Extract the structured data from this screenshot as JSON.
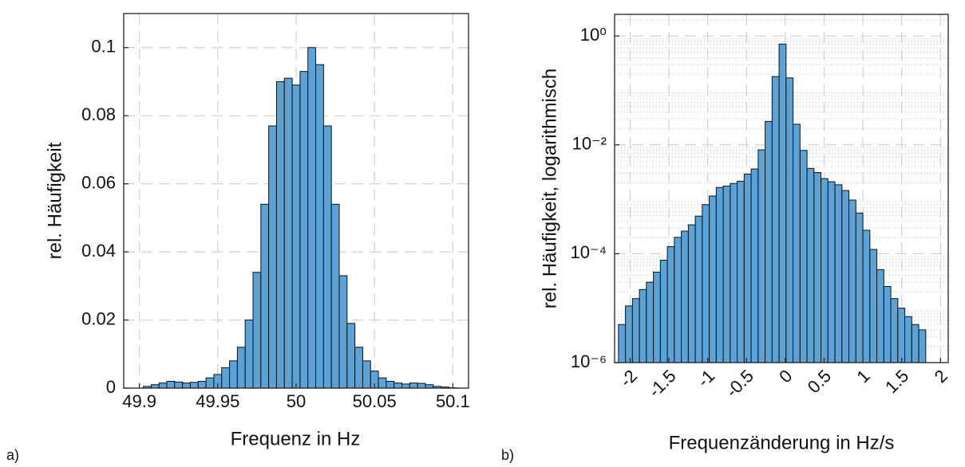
{
  "chart_data": [
    {
      "type": "histogram",
      "panel_label": "a)",
      "xlabel": "Frequenz in Hz",
      "ylabel": "rel. Häufigkeit",
      "bins": [
        49.9025,
        49.9075,
        49.9125,
        49.9175,
        49.9225,
        49.9275,
        49.9325,
        49.9375,
        49.9425,
        49.9475,
        49.9525,
        49.9575,
        49.9625,
        49.9675,
        49.9725,
        49.9775,
        49.9825,
        49.9875,
        49.9925,
        49.9975,
        50.0025,
        50.0075,
        50.0125,
        50.0175,
        50.0225,
        50.0275,
        50.0325,
        50.0375,
        50.0425,
        50.0475,
        50.0525,
        50.0575,
        50.0625,
        50.0675,
        50.0725,
        50.0775,
        50.0825,
        50.0875,
        50.0925,
        50.0975,
        50.1025
      ],
      "values": [
        0.0005,
        0.001,
        0.0015,
        0.002,
        0.0018,
        0.0015,
        0.0017,
        0.002,
        0.003,
        0.004,
        0.006,
        0.008,
        0.012,
        0.02,
        0.034,
        0.054,
        0.077,
        0.09,
        0.091,
        0.089,
        0.093,
        0.1,
        0.095,
        0.077,
        0.054,
        0.033,
        0.019,
        0.012,
        0.008,
        0.005,
        0.003,
        0.002,
        0.0015,
        0.0012,
        0.0015,
        0.0014,
        0.001,
        0.0005,
        0.0003,
        0.0001
      ],
      "color": "#5ba3d6",
      "xlim": [
        49.89,
        50.11
      ],
      "xticks": [
        49.9,
        49.95,
        50,
        50.05,
        50.1
      ],
      "ylim": [
        0,
        0.11
      ],
      "yticks": [
        0,
        0.02,
        0.04,
        0.06,
        0.08,
        0.1
      ],
      "grid": true
    },
    {
      "type": "histogram",
      "panel_label": "b)",
      "xlabel": "Frequenzänderung in Hz/s",
      "ylabel": "rel. Häufigkeit, logarithmisch",
      "bins": [
        -2.15,
        -2.06,
        -1.97,
        -1.88,
        -1.79,
        -1.7,
        -1.61,
        -1.52,
        -1.43,
        -1.34,
        -1.25,
        -1.16,
        -1.07,
        -0.98,
        -0.89,
        -0.8,
        -0.71,
        -0.62,
        -0.53,
        -0.44,
        -0.35,
        -0.26,
        -0.17,
        -0.08,
        0.01,
        0.1,
        0.19,
        0.28,
        0.37,
        0.46,
        0.55,
        0.64,
        0.73,
        0.82,
        0.91,
        1.0,
        1.09,
        1.18,
        1.27,
        1.36,
        1.45,
        1.54,
        1.63,
        1.72,
        1.81
      ],
      "values": [
        5e-06,
        1.1e-05,
        1.5e-05,
        2.2e-05,
        3e-05,
        4.6e-05,
        7.6e-05,
        0.000135,
        0.0002,
        0.00026,
        0.00034,
        0.00049,
        0.0008,
        0.00115,
        0.00165,
        0.00175,
        0.00195,
        0.00215,
        0.0029,
        0.0036,
        0.0081,
        0.027,
        0.18,
        0.71,
        0.17,
        0.024,
        0.0079,
        0.0037,
        0.0031,
        0.0024,
        0.0021,
        0.00185,
        0.00145,
        0.00097,
        0.00056,
        0.00027,
        0.00012,
        5.1e-05,
        2.5e-05,
        1.5e-05,
        1e-05,
        7e-06,
        5e-06,
        4e-06
      ],
      "color": "#5ba3d6",
      "xlim": [
        -2.2,
        2.1
      ],
      "xticks": [
        -2,
        -1.5,
        -1,
        -0.5,
        0,
        0.5,
        1,
        1.5,
        2
      ],
      "ylim": [
        1e-06,
        2.5
      ],
      "ylog": true,
      "yticks": [
        {
          "value": 1e-06,
          "label": "10⁻⁶"
        },
        {
          "value": 0.0001,
          "label": "10⁻⁴"
        },
        {
          "value": 0.01,
          "label": "10⁻²"
        },
        {
          "value": 1,
          "label": "10⁰"
        }
      ],
      "grid": true,
      "minor_grid": true,
      "xtick_rotation": 45
    }
  ]
}
